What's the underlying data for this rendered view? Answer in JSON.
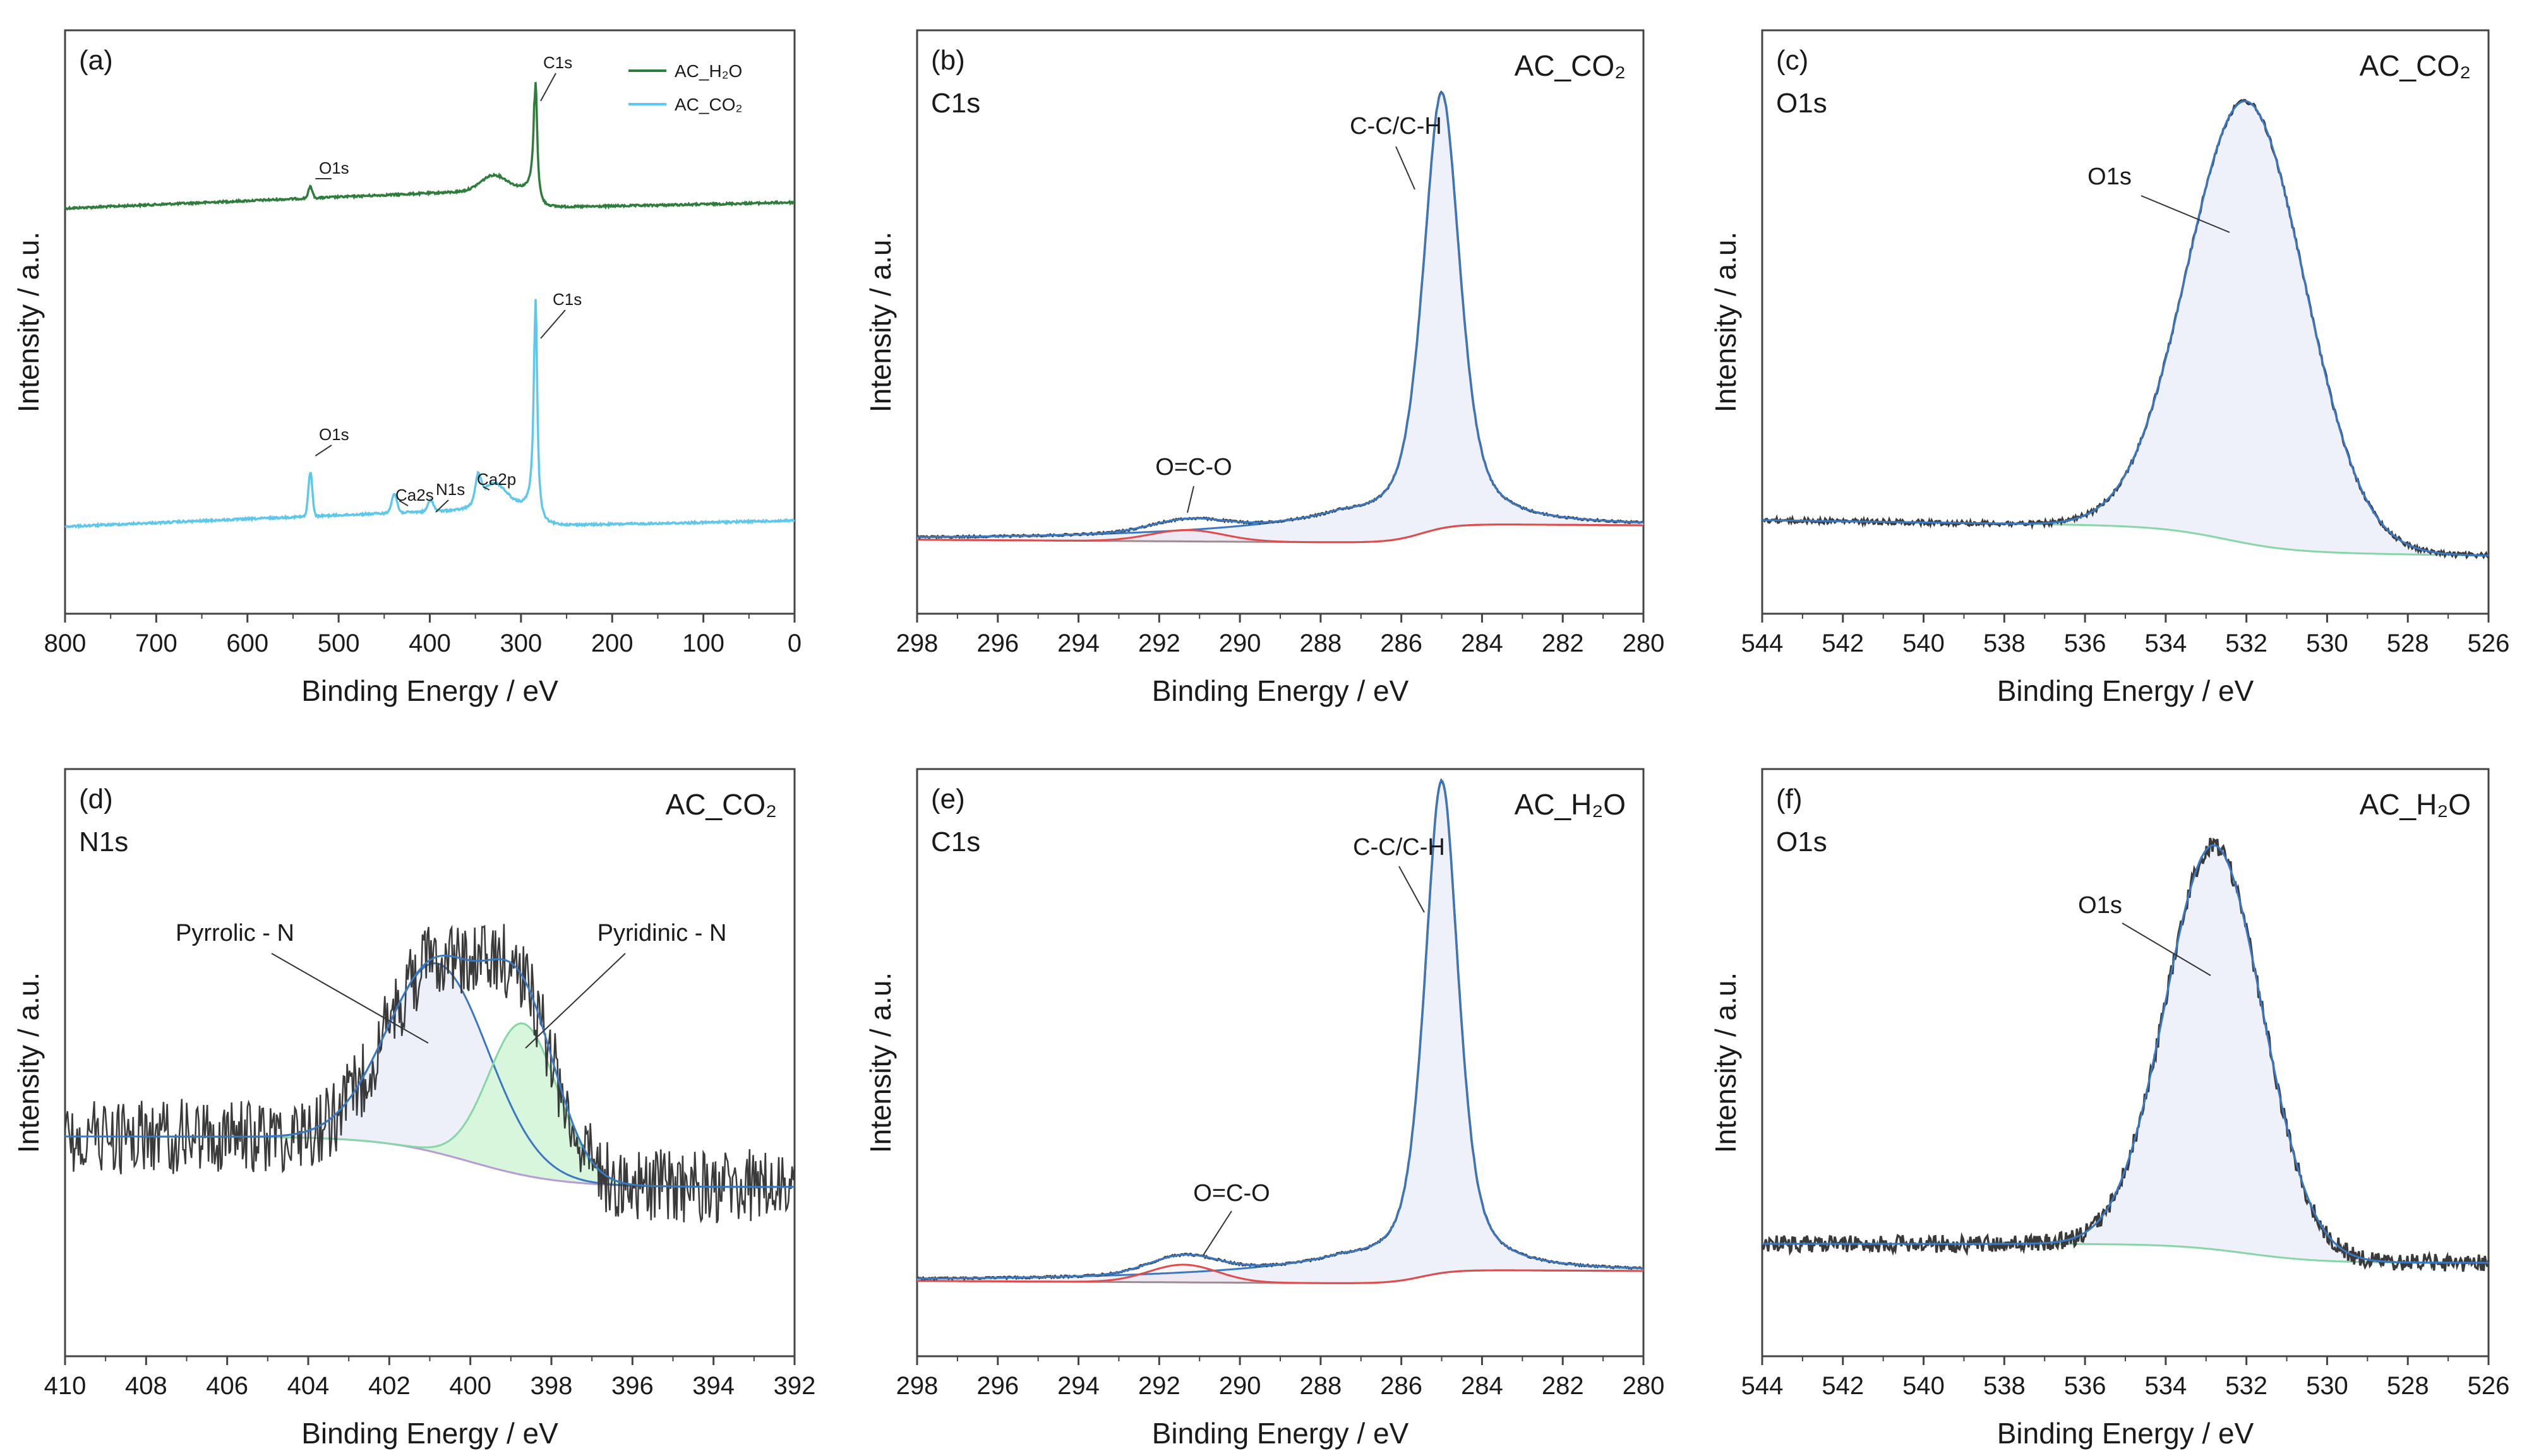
{
  "figure": {
    "axis_label_x": "Binding Energy / eV",
    "axis_label_y": "Intensity / a.u."
  },
  "colors": {
    "ac_h2o": "#2e7d3c",
    "ac_co2": "#5ec8ec",
    "raw": "#3a3a3a",
    "envelope": "#3a78c2",
    "fill": "#eef1fa",
    "peak_red": "#e24b4b",
    "baseline_violet": "#b79ad6",
    "baseline_green": "#86d6a6",
    "n_pyridinic_fill": "#d7f6dc"
  },
  "chart_data": [
    {
      "id": "a",
      "type": "line",
      "panel_letter": "(a)",
      "title": "",
      "xlabel": "Binding Energy / eV",
      "ylabel": "Intensity / a.u.",
      "xlim": [
        800,
        0
      ],
      "xticks": [
        800,
        700,
        600,
        500,
        400,
        300,
        200,
        100,
        0
      ],
      "legend": {
        "position": "top-right",
        "entries": [
          {
            "series": "ac_h2o",
            "label": "AC_H₂O"
          },
          {
            "series": "ac_co2",
            "label": "AC_CO₂"
          }
        ]
      },
      "series": [
        {
          "name": "AC_H2O",
          "color_key": "ac_h2o",
          "peaks": [
            {
              "label": "O1s",
              "energy": 531
            },
            {
              "label": "C1s",
              "energy": 284
            }
          ]
        },
        {
          "name": "AC_CO2",
          "color_key": "ac_co2",
          "peaks": [
            {
              "label": "O1s",
              "energy": 531
            },
            {
              "label": "Ca2s",
              "energy": 439
            },
            {
              "label": "N1s",
              "energy": 399
            },
            {
              "label": "Ca2p",
              "energy": 347
            },
            {
              "label": "C1s",
              "energy": 284
            }
          ]
        }
      ]
    },
    {
      "id": "b",
      "type": "line",
      "panel_letter": "(b)",
      "sample": "AC_CO₂",
      "core_level": "C1s",
      "xlabel": "Binding Energy / eV",
      "ylabel": "Intensity / a.u.",
      "xlim": [
        298,
        280
      ],
      "xticks": [
        298,
        296,
        294,
        292,
        290,
        288,
        286,
        284,
        282,
        280
      ],
      "components": [
        {
          "label": "C-C/C-H",
          "center": 285.0,
          "color_key": "envelope"
        },
        {
          "label": "O=C-O",
          "center": 291.3,
          "color_key": "peak_red"
        }
      ]
    },
    {
      "id": "c",
      "type": "line",
      "panel_letter": "(c)",
      "sample": "AC_CO₂",
      "core_level": "O1s",
      "xlabel": "Binding Energy  / eV",
      "ylabel": "Intensity / a.u.",
      "xlim": [
        544,
        526
      ],
      "xticks": [
        544,
        542,
        540,
        538,
        536,
        534,
        532,
        530,
        528,
        526
      ],
      "components": [
        {
          "label": "O1s",
          "center": 532.0,
          "color_key": "envelope"
        }
      ]
    },
    {
      "id": "d",
      "type": "line",
      "panel_letter": "(d)",
      "sample": "AC_CO₂",
      "core_level": "N1s",
      "xlabel": "Binding Energy / eV",
      "ylabel": "Intensity / a.u.",
      "xlim": [
        410,
        392
      ],
      "xticks": [
        410,
        408,
        406,
        404,
        402,
        400,
        398,
        396,
        394,
        392
      ],
      "components": [
        {
          "label": "Pyrrolic - N",
          "center": 400.8,
          "color_key": "envelope"
        },
        {
          "label": "Pyridinic - N",
          "center": 398.7,
          "color_key": "baseline_green"
        }
      ]
    },
    {
      "id": "e",
      "type": "line",
      "panel_letter": "(e)",
      "sample": "AC_H₂O",
      "core_level": "C1s",
      "xlabel": "Binding Energy / eV",
      "ylabel": "Intensity / a.u.",
      "xlim": [
        298,
        280
      ],
      "xticks": [
        298,
        296,
        294,
        292,
        290,
        288,
        286,
        284,
        282,
        280
      ],
      "components": [
        {
          "label": "C-C/C-H",
          "center": 285.0,
          "color_key": "envelope"
        },
        {
          "label": "O=C-O",
          "center": 291.4,
          "color_key": "peak_red"
        }
      ]
    },
    {
      "id": "f",
      "type": "line",
      "panel_letter": "(f)",
      "sample": "AC_H₂O",
      "core_level": "O1s",
      "xlabel": "Binding Energy / eV",
      "ylabel": "Intensity / a.u.",
      "xlim": [
        544,
        526
      ],
      "xticks": [
        544,
        542,
        540,
        538,
        536,
        534,
        532,
        530,
        528,
        526
      ],
      "components": [
        {
          "label": "O1s",
          "center": 532.8,
          "color_key": "envelope"
        }
      ]
    }
  ]
}
